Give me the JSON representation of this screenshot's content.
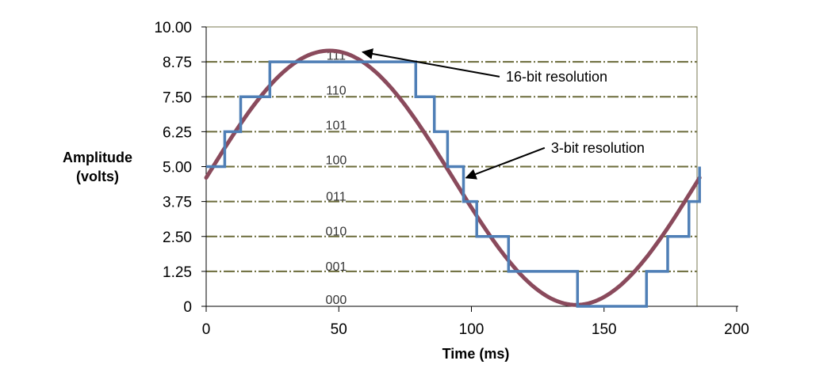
{
  "chart_data": {
    "type": "line",
    "xlabel": "Time (ms)",
    "ylabel_lines": [
      "Amplitude",
      "(volts)"
    ],
    "xlim": [
      0,
      200
    ],
    "ylim": [
      0,
      10
    ],
    "x_ticks": [
      "0",
      "50",
      "100",
      "150",
      "200"
    ],
    "y_ticks": [
      "0",
      "1.25",
      "2.50",
      "3.75",
      "5.00",
      "6.25",
      "7.50",
      "8.75",
      "10.00"
    ],
    "y_tick_values": [
      0,
      1.25,
      2.5,
      3.75,
      5.0,
      6.25,
      7.5,
      8.75,
      10.0
    ],
    "gridlines": true,
    "level_codes": [
      {
        "code": "000",
        "y": 0.25
      },
      {
        "code": "001",
        "y": 1.45
      },
      {
        "code": "010",
        "y": 2.7
      },
      {
        "code": "011",
        "y": 3.95
      },
      {
        "code": "100",
        "y": 5.25
      },
      {
        "code": "101",
        "y": 6.5
      },
      {
        "code": "110",
        "y": 7.75
      },
      {
        "code": "111",
        "y": 9.0
      }
    ],
    "series": [
      {
        "name": "16-bit resolution",
        "kind": "sine",
        "color": "#8a4a5c",
        "x_range": [
          0,
          186
        ],
        "offset": 4.6,
        "amplitude": 4.55,
        "period": 186,
        "phase_x": 0
      },
      {
        "name": "3-bit resolution",
        "kind": "step",
        "color": "#4f7fb6",
        "points": [
          [
            0,
            5.0
          ],
          [
            7,
            5.0
          ],
          [
            7,
            6.25
          ],
          [
            13,
            6.25
          ],
          [
            13,
            7.5
          ],
          [
            24,
            7.5
          ],
          [
            24,
            8.75
          ],
          [
            79,
            8.75
          ],
          [
            79,
            7.5
          ],
          [
            86,
            7.5
          ],
          [
            86,
            6.25
          ],
          [
            91,
            6.25
          ],
          [
            91,
            5.0
          ],
          [
            97,
            5.0
          ],
          [
            97,
            3.75
          ],
          [
            102,
            3.75
          ],
          [
            102,
            2.5
          ],
          [
            114,
            2.5
          ],
          [
            114,
            1.25
          ],
          [
            140,
            1.25
          ],
          [
            140,
            0
          ],
          [
            166,
            0
          ],
          [
            166,
            1.25
          ],
          [
            174,
            1.25
          ],
          [
            174,
            2.5
          ],
          [
            182,
            2.5
          ],
          [
            182,
            3.75
          ],
          [
            186,
            3.75
          ],
          [
            186,
            5.0
          ]
        ]
      }
    ],
    "annotations": [
      {
        "text": "16-bit resolution",
        "text_x": 113,
        "text_y": 8.05,
        "arrow_to": [
          59,
          9.1
        ]
      },
      {
        "text": "3-bit resolution",
        "text_x": 130,
        "text_y": 5.5,
        "arrow_to": [
          98,
          4.6
        ]
      }
    ],
    "colors": {
      "grid": "#6b6b3a",
      "frame": "#7a7a52"
    }
  }
}
